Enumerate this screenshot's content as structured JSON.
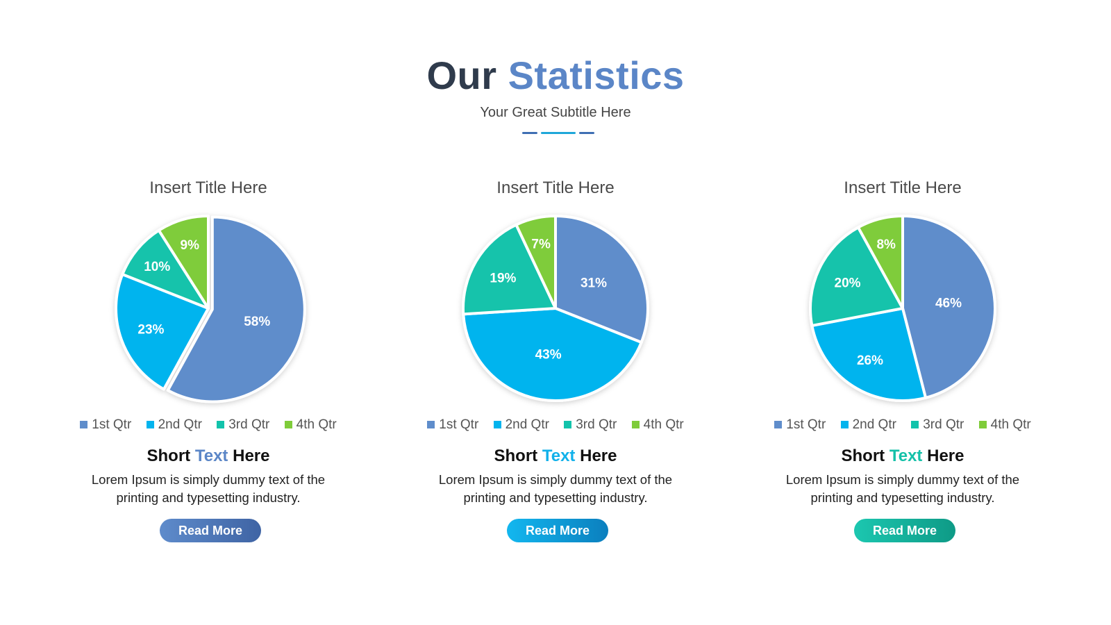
{
  "header": {
    "title_part1": "Our",
    "title_part2": "Statistics",
    "subtitle": "Your Great Subtitle Here"
  },
  "colors": {
    "q1": "#5f8dcb",
    "q2": "#02b4ee",
    "q3": "#12c3ab",
    "q4": "#7fcc3a",
    "title_dark": "#2f3b4c",
    "title_accent": "#5b86c7"
  },
  "panels": [
    {
      "title": "Insert Title Here",
      "short_title_a": "Short",
      "short_title_b": "Text",
      "short_title_c": "Here",
      "accent_color": "#5b86c7",
      "description": "Lorem Ipsum is simply dummy text of the printing and typesetting industry.",
      "button_label": "Read More"
    },
    {
      "title": "Insert Title Here",
      "short_title_a": "Short",
      "short_title_b": "Text",
      "short_title_c": "Here",
      "accent_color": "#12b1ea",
      "description": "Lorem Ipsum is simply dummy text of the printing and typesetting industry.",
      "button_label": "Read More"
    },
    {
      "title": "Insert Title Here",
      "short_title_a": "Short",
      "short_title_b": "Text",
      "short_title_c": "Here",
      "accent_color": "#15c1a9",
      "description": "Lorem Ipsum is simply dummy text of the printing and typesetting industry.",
      "button_label": "Read More"
    }
  ],
  "chart_data": [
    {
      "type": "pie",
      "title": "Insert Title Here",
      "categories": [
        "1st Qtr",
        "2nd Qtr",
        "3rd Qtr",
        "4th Qtr"
      ],
      "values": [
        58,
        23,
        10,
        9
      ],
      "labels": [
        "58%",
        "23%",
        "10%",
        "9%"
      ],
      "exploded": "1st Qtr",
      "legend": "bottom"
    },
    {
      "type": "pie",
      "title": "Insert Title Here",
      "categories": [
        "1st Qtr",
        "2nd Qtr",
        "3rd Qtr",
        "4th Qtr"
      ],
      "values": [
        31,
        43,
        19,
        7
      ],
      "labels": [
        "31%",
        "43%",
        "19%",
        "7%"
      ],
      "legend": "bottom"
    },
    {
      "type": "pie",
      "title": "Insert Title Here",
      "categories": [
        "1st Qtr",
        "2nd Qtr",
        "3rd Qtr",
        "4th Qtr"
      ],
      "values": [
        46,
        26,
        20,
        8
      ],
      "labels": [
        "46%",
        "26%",
        "20%",
        "8%"
      ],
      "legend": "bottom"
    }
  ]
}
